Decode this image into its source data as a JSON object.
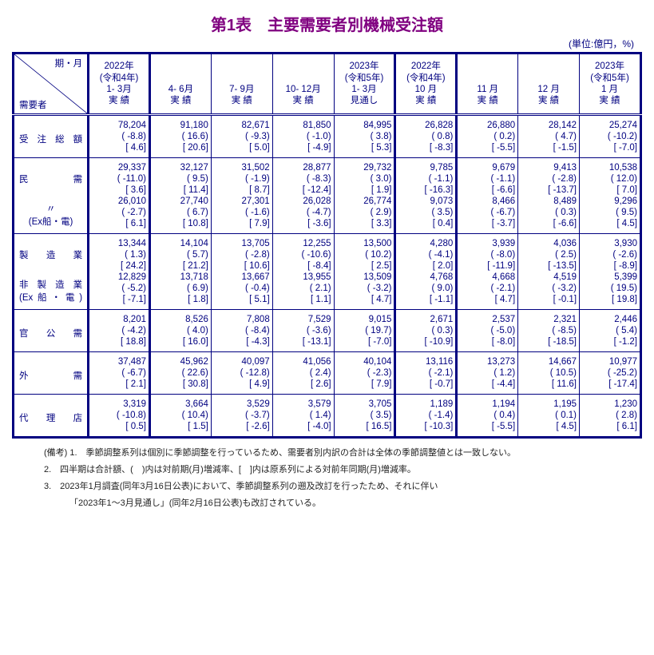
{
  "title": "第1表　主要需要者別機械受注額",
  "unit": "(単位:億円，%)",
  "corner": {
    "top": "期・月",
    "bottom": "需要者"
  },
  "col_widths_pct": [
    12,
    9.8,
    9.8,
    9.8,
    9.8,
    9.8,
    9.8,
    9.8,
    9.8,
    9.8
  ],
  "colgroups": [
    1,
    4,
    1,
    3,
    1
  ],
  "headers": [
    [
      "2022年",
      "(令和4年)",
      "1- 3月",
      "実 績"
    ],
    [
      "",
      "",
      "4- 6月",
      "実 績"
    ],
    [
      "",
      "",
      "7- 9月",
      "実 績"
    ],
    [
      "",
      "",
      "10- 12月",
      "実 績"
    ],
    [
      "2023年",
      "(令和5年)",
      "1- 3月",
      "見通し"
    ],
    [
      "2022年",
      "(令和4年)",
      "10 月",
      "実 績"
    ],
    [
      "",
      "",
      "11 月",
      "実 績"
    ],
    [
      "",
      "",
      "12 月",
      "実 績"
    ],
    [
      "2023年",
      "(令和5年)",
      "1 月",
      "実 績"
    ]
  ],
  "sections": [
    {
      "rows": [
        {
          "label": "受 注 総 額",
          "label_style": "rowhead",
          "vals": [
            "78,204",
            "91,180",
            "82,671",
            "81,850",
            "84,995",
            "26,828",
            "26,880",
            "28,142",
            "25,274"
          ],
          "pct": [
            "( -8.8)",
            "( 16.6)",
            "( -9.3)",
            "( -1.0)",
            "( 3.8)",
            "( 0.8)",
            "( 0.2)",
            "( 4.7)",
            "( -10.2)"
          ],
          "bkt": [
            "[ 4.6]",
            "[ 20.6]",
            "[ 5.0]",
            "[ -4.9]",
            "[ 5.3]",
            "[ -8.3]",
            "[ -5.5]",
            "[ -1.5]",
            "[ -7.0]"
          ]
        }
      ]
    },
    {
      "rows": [
        {
          "label": "民　　　　需",
          "label_style": "rowhead",
          "vals": [
            "29,337",
            "32,127",
            "31,502",
            "28,877",
            "29,732",
            "9,785",
            "9,679",
            "9,413",
            "10,538"
          ],
          "pct": [
            "( -11.0)",
            "( 9.5)",
            "( -1.9)",
            "( -8.3)",
            "( 3.0)",
            "( -1.1)",
            "( -1.1)",
            "( -2.8)",
            "( 12.0)"
          ],
          "bkt": [
            "[ 3.6]",
            "[ 11.4]",
            "[ 8.7]",
            "[ -12.4]",
            "[ 1.9]",
            "[ -16.3]",
            "[ -6.6]",
            "[ -13.7]",
            "[ 7.0]"
          ]
        },
        {
          "label": "〃",
          "sublabel": "(Ex船・電)",
          "label_style": "rowhead-center",
          "vals": [
            "26,010",
            "27,740",
            "27,301",
            "26,028",
            "26,774",
            "9,073",
            "8,466",
            "8,489",
            "9,296"
          ],
          "pct": [
            "( -2.7)",
            "( 6.7)",
            "( -1.6)",
            "( -4.7)",
            "( 2.9)",
            "( 3.5)",
            "( -6.7)",
            "( 0.3)",
            "( 9.5)"
          ],
          "bkt": [
            "[ 6.1]",
            "[ 10.8]",
            "[ 7.9]",
            "[ -3.6]",
            "[ 3.3]",
            "[ 0.4]",
            "[ -3.7]",
            "[ -6.6]",
            "[ 4.5]"
          ]
        }
      ]
    },
    {
      "rows": [
        {
          "label": "製　造　業",
          "label_style": "rowhead",
          "vals": [
            "13,344",
            "14,104",
            "13,705",
            "12,255",
            "13,500",
            "4,280",
            "3,939",
            "4,036",
            "3,930"
          ],
          "pct": [
            "( 1.3)",
            "( 5.7)",
            "( -2.8)",
            "( -10.6)",
            "( 10.2)",
            "( -4.1)",
            "( -8.0)",
            "( 2.5)",
            "( -2.6)"
          ],
          "bkt": [
            "[ 24.2]",
            "[ 21.2]",
            "[ 10.6]",
            "[ -8.4]",
            "[ 2.5]",
            "[ 2.0]",
            "[ -11.9]",
            "[ -13.5]",
            "[ -8.9]"
          ]
        },
        {
          "label": "非製造業",
          "sublabel": "(Ex船・電)",
          "label_style": "rowhead",
          "vals": [
            "12,829",
            "13,718",
            "13,667",
            "13,955",
            "13,509",
            "4,768",
            "4,668",
            "4,519",
            "5,399"
          ],
          "pct": [
            "( -5.2)",
            "( 6.9)",
            "( -0.4)",
            "( 2.1)",
            "( -3.2)",
            "( 9.0)",
            "( -2.1)",
            "( -3.2)",
            "( 19.5)"
          ],
          "bkt": [
            "[ -7.1]",
            "[ 1.8]",
            "[ 5.1]",
            "[ 1.1]",
            "[ 4.7]",
            "[ -1.1]",
            "[ 4.7]",
            "[ -0.1]",
            "[ 19.8]"
          ]
        }
      ]
    },
    {
      "rows": [
        {
          "label": "官　公　需",
          "label_style": "rowhead",
          "vals": [
            "8,201",
            "8,526",
            "7,808",
            "7,529",
            "9,015",
            "2,671",
            "2,537",
            "2,321",
            "2,446"
          ],
          "pct": [
            "( -4.2)",
            "( 4.0)",
            "( -8.4)",
            "( -3.6)",
            "( 19.7)",
            "( 0.3)",
            "( -5.0)",
            "( -8.5)",
            "( 5.4)"
          ],
          "bkt": [
            "[ 18.8]",
            "[ 16.0]",
            "[ -4.3]",
            "[ -13.1]",
            "[ -7.0]",
            "[ -10.9]",
            "[ -8.0]",
            "[ -18.5]",
            "[ -1.2]"
          ]
        }
      ]
    },
    {
      "rows": [
        {
          "label": "外　　　　需",
          "label_style": "rowhead",
          "vals": [
            "37,487",
            "45,962",
            "40,097",
            "41,056",
            "40,104",
            "13,116",
            "13,273",
            "14,667",
            "10,977"
          ],
          "pct": [
            "( -6.7)",
            "( 22.6)",
            "( -12.8)",
            "( 2.4)",
            "( -2.3)",
            "( -2.1)",
            "( 1.2)",
            "( 10.5)",
            "( -25.2)"
          ],
          "bkt": [
            "[ 2.1]",
            "[ 30.8]",
            "[ 4.9]",
            "[ 2.6]",
            "[ 7.9]",
            "[ -0.7]",
            "[ -4.4]",
            "[ 11.6]",
            "[ -17.4]"
          ]
        }
      ]
    },
    {
      "rows": [
        {
          "label": "代　理　店",
          "label_style": "rowhead",
          "vals": [
            "3,319",
            "3,664",
            "3,529",
            "3,579",
            "3,705",
            "1,189",
            "1,194",
            "1,195",
            "1,230"
          ],
          "pct": [
            "( -10.8)",
            "( 10.4)",
            "( -3.7)",
            "( 1.4)",
            "( 3.5)",
            "( -1.4)",
            "( 0.4)",
            "( 0.1)",
            "( 2.8)"
          ],
          "bkt": [
            "[ 0.5]",
            "[ 1.5]",
            "[ -2.6]",
            "[ -4.0]",
            "[ 16.5]",
            "[ -10.3]",
            "[ -5.5]",
            "[ 4.5]",
            "[ 6.1]"
          ]
        }
      ]
    }
  ],
  "notes": [
    "(備考) 1.　季節調整系列は個別に季節調整を行っているため、需要者別内訳の合計は全体の季節調整値とは一致しない。",
    "2.　四半期は合計額、(　)内は対前期(月)増減率、[　]内は原系列による対前年同期(月)増減率。",
    "3.　2023年1月調査(同年3月16日公表)において、季節調整系列の遡及改訂を行ったため、それに伴い",
    "「2023年1～3月見通し」(同年2月16日公表)も改訂されている。"
  ]
}
